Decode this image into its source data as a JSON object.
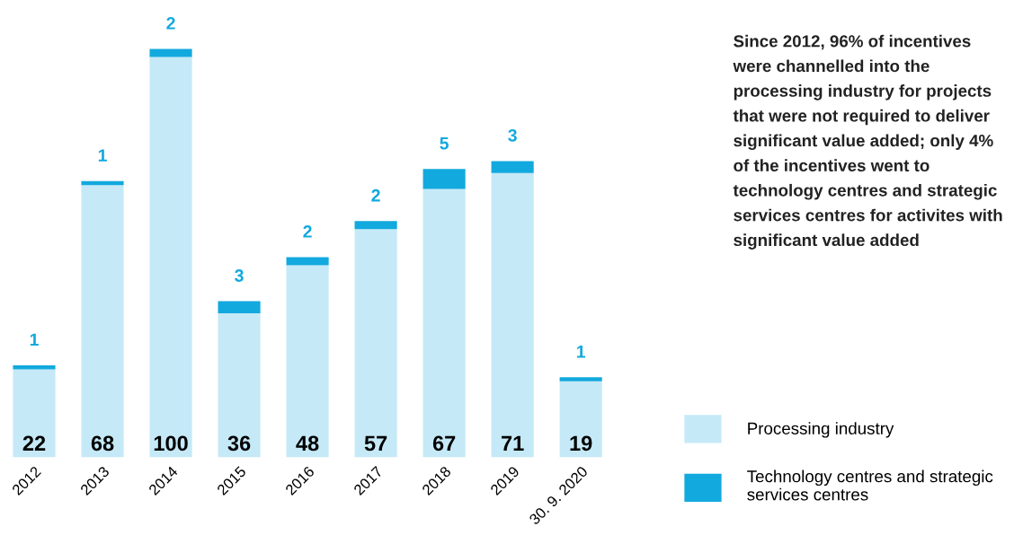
{
  "chart_data": {
    "type": "bar",
    "stacked": true,
    "data_labels": true,
    "legend": "bottom right",
    "grid": false,
    "categories": [
      "2012",
      "2013",
      "2014",
      "2015",
      "2016",
      "2017",
      "2018",
      "2019",
      "30. 9. 2020"
    ],
    "series": [
      {
        "name": "Processing industry",
        "color": "#c5e9f7",
        "values": [
          22,
          68,
          100,
          36,
          48,
          57,
          67,
          71,
          19
        ]
      },
      {
        "name": "Technology centres and strategic\nservices centres",
        "color": "#12a9de",
        "values": [
          1,
          1,
          2,
          3,
          2,
          2,
          5,
          3,
          1
        ]
      }
    ],
    "annotations": [
      "Since 2012, 96% of incentives were channelled into the processing industry for projects that were not required to deliver significant value added; only 4% of the incentives went to technology centres and strategic services centres for activites with significant value added"
    ]
  }
}
